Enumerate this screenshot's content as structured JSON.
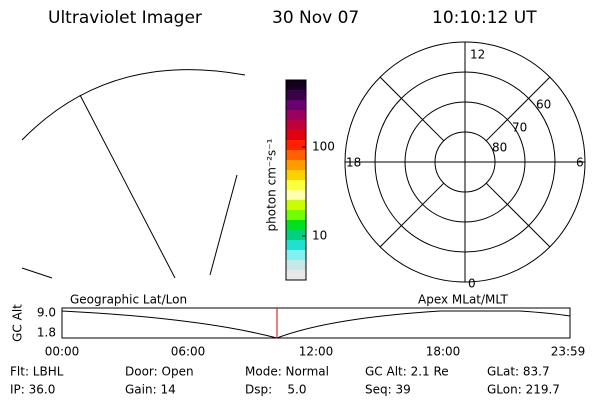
{
  "header": {
    "title": "Ultraviolet Imager",
    "date": "30 Nov 07",
    "time": "10:10:12 UT"
  },
  "colorbar": {
    "label": "photon cm⁻²s⁻¹",
    "ticks": [
      "100",
      "10"
    ]
  },
  "polar": {
    "mlt_labels": [
      "12",
      "6",
      "18",
      "0"
    ],
    "lat_labels": [
      "60",
      "70",
      "80"
    ]
  },
  "altitude_plot": {
    "y_label": "GC Alt",
    "y_ticks": [
      "9.0",
      "1.8"
    ],
    "left_label": "Geographic Lat/Lon",
    "right_label": "Apex MLat/MLT",
    "x_ticks": [
      "00:00",
      "06:00",
      "12:00",
      "18:00",
      "23:59"
    ]
  },
  "status": {
    "rows": [
      [
        "Flt: LBHL",
        "Door: Open",
        "Mode: Normal",
        "GC Alt: 2.1 Re",
        "GLat: 83.7"
      ],
      [
        "IP: 36.0",
        "Gain: 14",
        "Dsp:    5.0",
        "Seq: 39",
        "GLon: 219.7"
      ]
    ]
  }
}
